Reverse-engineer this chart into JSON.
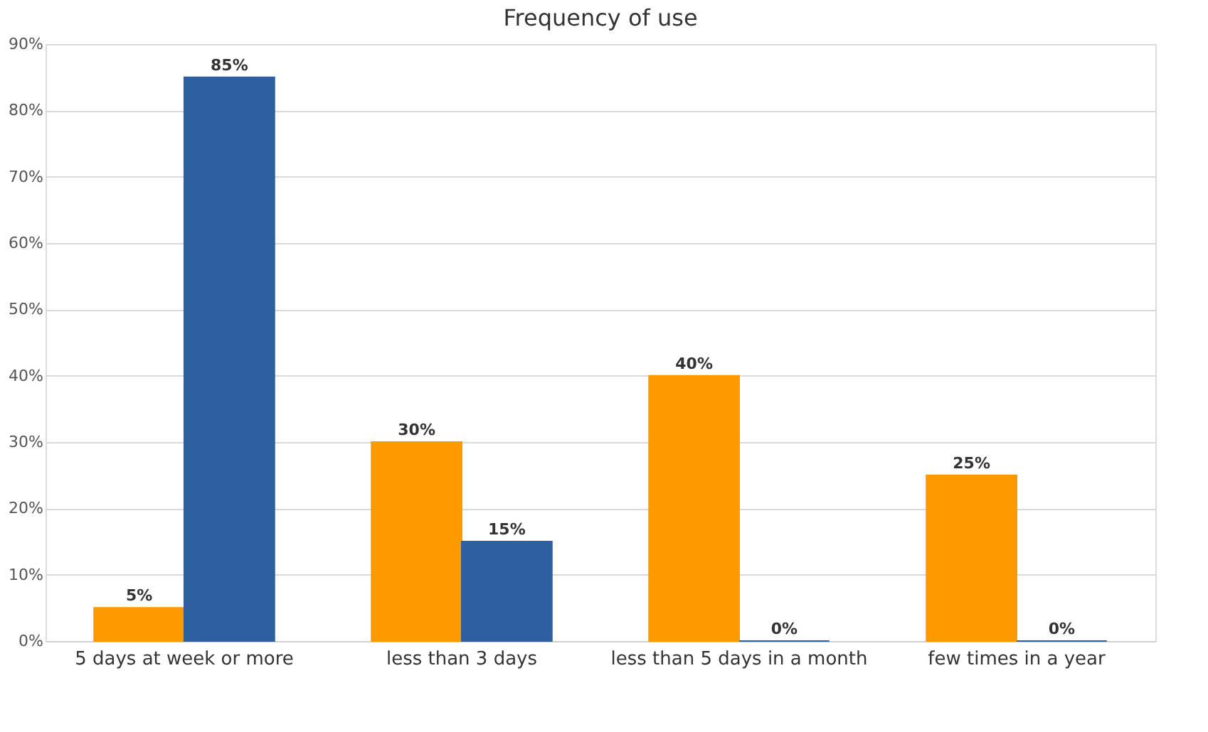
{
  "chart_data": {
    "type": "bar",
    "title": "Frequency of use",
    "categories": [
      "5 days at week or more",
      "less than 3 days",
      "less than 5 days in a month",
      "few times in a year"
    ],
    "series": [
      {
        "color": "#ff9900",
        "values": [
          5,
          30,
          40,
          25
        ],
        "value_labels": [
          "5%",
          "30%",
          "40%",
          "25%"
        ]
      },
      {
        "color": "#2e5f9e",
        "values": [
          85,
          15,
          0,
          0
        ],
        "value_labels": [
          "85%",
          "15%",
          "0%",
          "0%"
        ]
      }
    ],
    "ylim": [
      0,
      90
    ],
    "yticks": [
      {
        "value": 0,
        "label": "0%"
      },
      {
        "value": 10,
        "label": "10%"
      },
      {
        "value": 20,
        "label": "20%"
      },
      {
        "value": 30,
        "label": "30%"
      },
      {
        "value": 40,
        "label": "40%"
      },
      {
        "value": 50,
        "label": "50%"
      },
      {
        "value": 60,
        "label": "60%"
      },
      {
        "value": 70,
        "label": "70%"
      },
      {
        "value": 80,
        "label": "80%"
      },
      {
        "value": 90,
        "label": "90%"
      }
    ],
    "grid": "y",
    "legend": false
  }
}
